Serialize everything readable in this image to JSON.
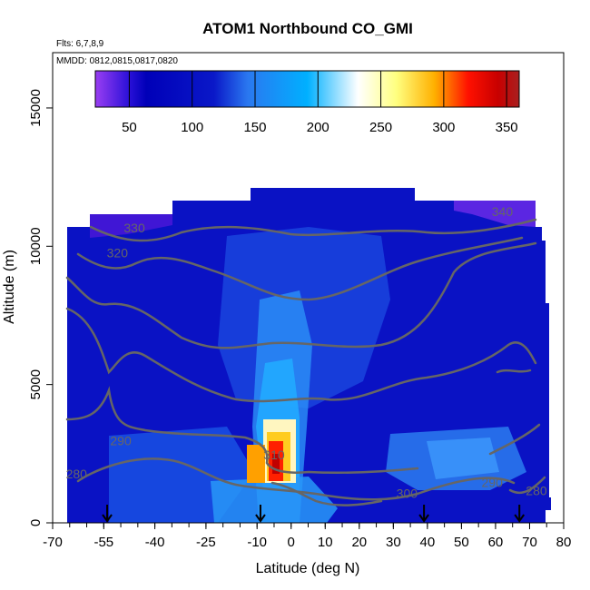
{
  "chart_data": {
    "type": "heatmap",
    "title": "ATOM1 Northbound CO_GMI",
    "annotations": [
      "Flts: 6,7,8,9",
      "MMDD: 0812,0815,0817,0820"
    ],
    "xlabel": "Latitude (deg N)",
    "ylabel": "Altitude (m)",
    "xlim": [
      -70,
      80
    ],
    "ylim": [
      0,
      17000
    ],
    "x_ticks": [
      -70,
      -55,
      -40,
      -25,
      -10,
      0,
      10,
      20,
      30,
      40,
      50,
      60,
      70,
      80
    ],
    "x_tick_labels": [
      "-70",
      "-55",
      "-40",
      "-25",
      "-10",
      "0",
      "10",
      "20",
      "30",
      "40",
      "50",
      "60",
      "70",
      "80"
    ],
    "y_ticks": [
      0,
      5000,
      10000,
      15000
    ],
    "y_tick_labels": [
      "0",
      "5000",
      "10000",
      "15000"
    ],
    "colorbar": {
      "range": [
        23,
        360
      ],
      "ticks": [
        50,
        100,
        150,
        200,
        250,
        300,
        350
      ],
      "tick_labels": [
        "50",
        "100",
        "150",
        "200",
        "250",
        "300",
        "350"
      ]
    },
    "arrows_lat": [
      -54,
      -9,
      39,
      67
    ],
    "contour_labels": [
      {
        "text": "330",
        "lat": -46,
        "alt": 10500
      },
      {
        "text": "320",
        "lat": -51,
        "alt": 9600
      },
      {
        "text": "340",
        "lat": 62,
        "alt": 11100
      },
      {
        "text": "290",
        "lat": -50,
        "alt": 2800
      },
      {
        "text": "280",
        "lat": -63,
        "alt": 1600
      },
      {
        "text": "310",
        "lat": -5,
        "alt": 2300
      },
      {
        "text": "300",
        "lat": 34,
        "alt": 900
      },
      {
        "text": "290",
        "lat": 59,
        "alt": 1300
      },
      {
        "text": "280",
        "lat": 72,
        "alt": 1000
      }
    ]
  }
}
